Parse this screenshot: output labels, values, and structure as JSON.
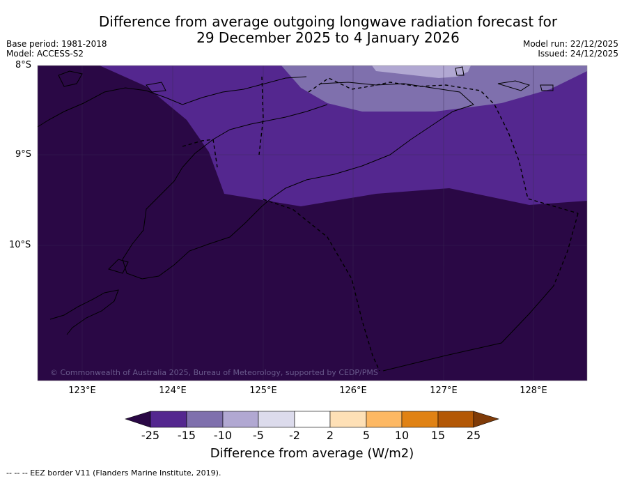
{
  "title": {
    "line1": "Difference from average outgoing longwave radiation forecast for",
    "line2": "29 December 2025 to 4 January 2026"
  },
  "meta": {
    "base_period": "Base period: 1981-2018",
    "model": "Model: ACCESS-S2",
    "model_run": "Model run: 22/12/2025",
    "issued": "Issued: 24/12/2025"
  },
  "axes": {
    "lat_labels": [
      "8°S",
      "9°S",
      "10°S"
    ],
    "lon_labels": [
      "123°E",
      "124°E",
      "125°E",
      "126°E",
      "127°E",
      "128°E"
    ]
  },
  "colorbar": {
    "ticks": [
      "-25",
      "-15",
      "-10",
      "-5",
      "-2",
      "2",
      "5",
      "10",
      "15",
      "25"
    ],
    "label": "Difference from average (W/m2)",
    "colors": {
      "lt_-25": "#2a0845",
      "n25_n15": "#54278f",
      "n15_n10": "#7f70ad",
      "n10_n5": "#b1a8d2",
      "n5_n2": "#dcdbec",
      "n2_2": "#ffffff",
      "2_5": "#fee0b6",
      "5_10": "#fdb863",
      "10_15": "#e08214",
      "15_25": "#b35806",
      "gt_25": "#7f3b08"
    }
  },
  "copyright": "© Commonwealth of Australia 2025, Bureau of Meteorology, supported by CEDP/PMS",
  "footnote": "--  --  -- EEZ border V11 (Flanders Marine Institute, 2019)."
}
